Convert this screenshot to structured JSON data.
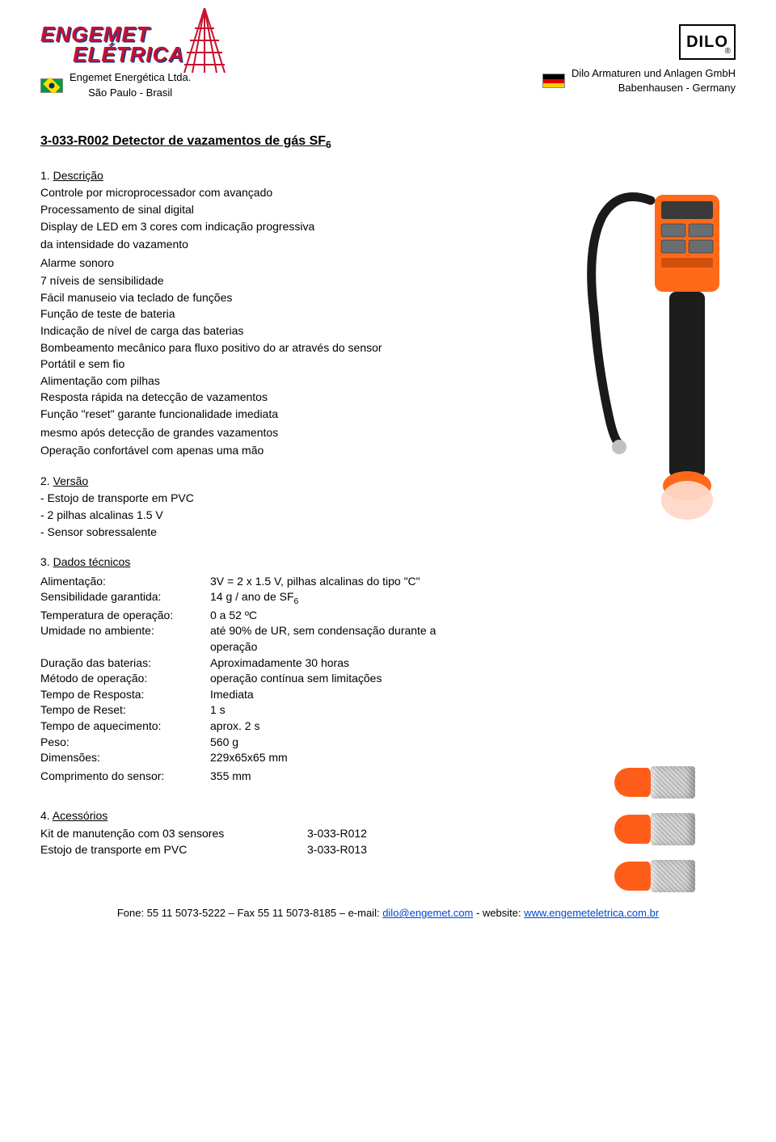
{
  "header": {
    "logo_line1": "ENGEMET",
    "logo_line2": "ELÉTRICA",
    "left_company_line1": "Engemet Energética Ltda.",
    "left_company_line2": "São Paulo - Brasil",
    "right_company_line1": "Dilo Armaturen und Anlagen GmbH",
    "right_company_line2": "Babenhausen - Germany",
    "dilo_label": "DILO",
    "antenna_color": "#c8102e",
    "logo_text_color": "#c8102e",
    "logo_shadow_color": "#1a3a8a"
  },
  "title": {
    "prefix": "3-033-R002 Detector de vazamentos de gás SF",
    "subscript": "6"
  },
  "sections": {
    "s1_num": "1. ",
    "s1_label": "Descrição",
    "desc_lines": [
      "Controle por microprocessador com avançado",
      "Processamento de sinal digital",
      "Display de LED em 3 cores com indicação progressiva"
    ],
    "desc_spaced1": "da intensidade do vazamento",
    "desc_spaced2": "Alarme sonoro",
    "desc_lines2": [
      "7 níveis de sensibilidade",
      "Fácil manuseio via teclado de funções",
      "Função de teste de bateria",
      "Indicação de nível de carga das baterias",
      "Bombeamento mecânico para fluxo positivo do ar através do sensor",
      "Portátil e sem fio",
      "Alimentação com pilhas",
      "Resposta rápida na detecção de vazamentos",
      "Função \"reset\" garante funcionalidade imediata"
    ],
    "desc_spaced3": "mesmo após detecção de grandes vazamentos",
    "desc_spaced4": "Operação confortável com apenas uma mão",
    "s2_num": "2. ",
    "s2_label": "Versão",
    "version_lines": [
      "- Estojo de transporte em PVC",
      "- 2 pilhas alcalinas 1.5 V",
      "- Sensor sobressalente"
    ],
    "s3_num": "3. ",
    "s3_label": "Dados técnicos",
    "tech": [
      {
        "label": "Alimentação:",
        "value": "3V = 2 x 1.5 V, pilhas alcalinas do tipo \"C\""
      },
      {
        "label": "Sensibilidade garantida:",
        "value_prefix": "14 g / ano de SF",
        "value_sub": "6"
      },
      {
        "label": "Temperatura de operação:",
        "value": "0 a 52 ºC"
      },
      {
        "label": "Umidade no ambiente:",
        "value": "até 90% de UR, sem condensação durante a operação"
      },
      {
        "label": "Duração das baterias:",
        "value": "Aproximadamente 30 horas"
      },
      {
        "label": "Método de operação:",
        "value": "operação contínua sem limitações"
      },
      {
        "label": "Tempo de Resposta:",
        "value": "Imediata"
      },
      {
        "label": "Tempo de Reset:",
        "value": "1 s"
      },
      {
        "label": "Tempo de aquecimento:",
        "value": "aprox. 2 s"
      },
      {
        "label": "Peso:",
        "value": "560 g"
      },
      {
        "label": "Dimensões:",
        "value": "229x65x65 mm"
      }
    ],
    "tech_last": {
      "label": "Comprimento do sensor:",
      "value": "355 mm"
    },
    "s4_num": "4. ",
    "s4_label": "Acessórios",
    "acc": [
      {
        "label": "Kit de manutenção com 03 sensores",
        "code": "3-033-R012"
      },
      {
        "label": "Estojo de transporte em PVC",
        "code": "3-033-R013"
      }
    ]
  },
  "product": {
    "body_color": "#ff6a1a",
    "handle_color": "#1d1d1d",
    "tip_color": "#ff875e",
    "button_color": "#6b6e71",
    "sensor_tip_color": "#ff5e1a",
    "sensor_mesh_light": "#d8d8d8",
    "sensor_mesh_dark": "#b8b8b8"
  },
  "footer": {
    "prefix": "Fone: 55 11 5073-5222 – Fax 55 11 5073-8185 – e-mail: ",
    "email": "dilo@engemet.com",
    "mid": " - website: ",
    "website": "www.engemeteletrica.com.br"
  },
  "flags": {
    "de_black": "#000000",
    "de_red": "#dd0000",
    "de_gold": "#ffce00"
  }
}
